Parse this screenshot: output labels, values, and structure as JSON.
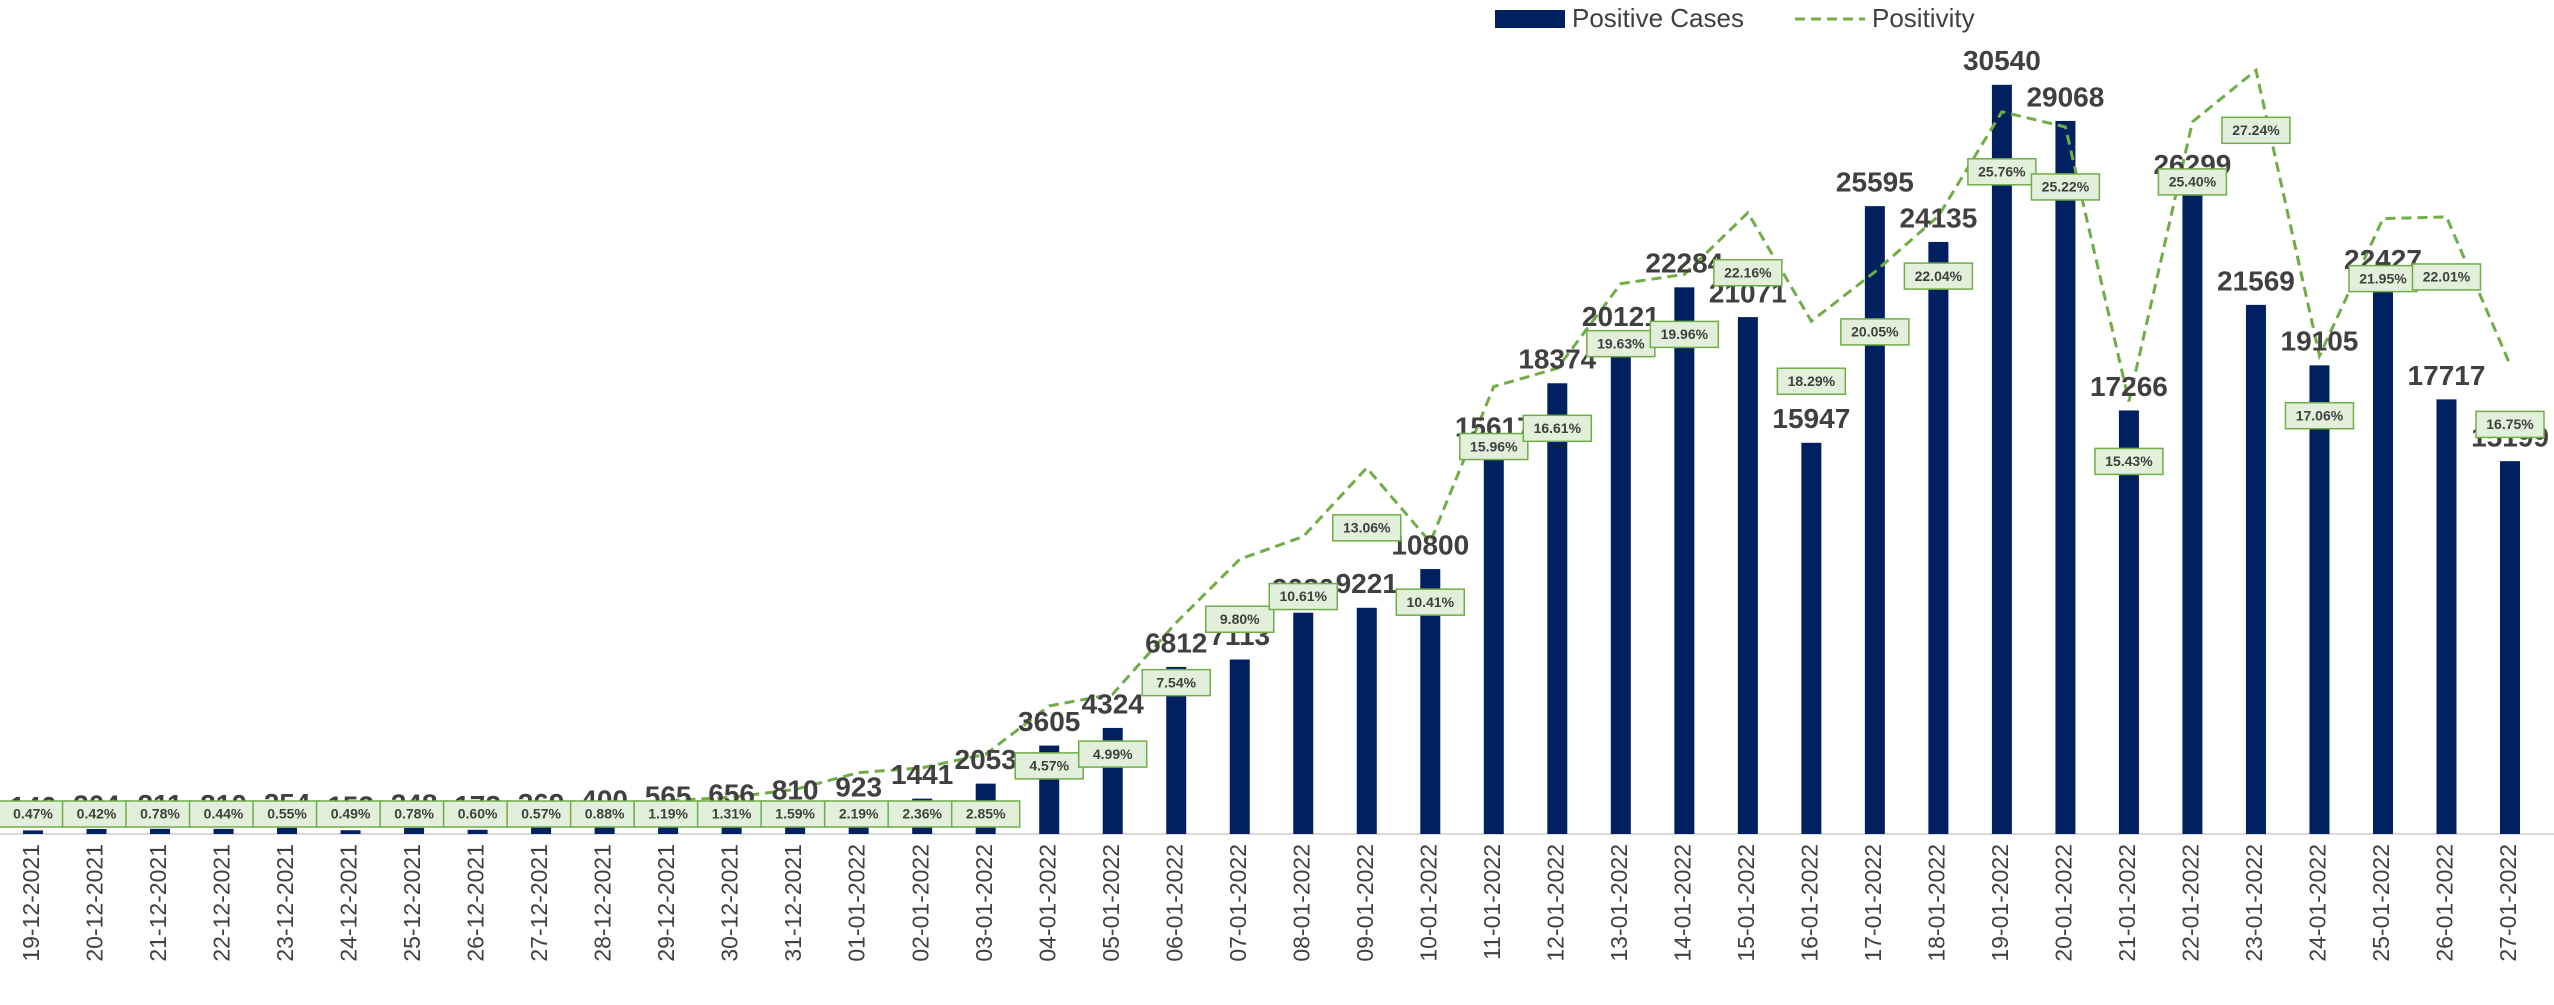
{
  "chart_data": {
    "type": "bar+line",
    "categories": [
      "19-12-2021",
      "20-12-2021",
      "21-12-2021",
      "22-12-2021",
      "23-12-2021",
      "24-12-2021",
      "25-12-2021",
      "26-12-2021",
      "27-12-2021",
      "28-12-2021",
      "29-12-2021",
      "30-12-2021",
      "31-12-2021",
      "01-01-2022",
      "02-01-2022",
      "03-01-2022",
      "04-01-2022",
      "05-01-2022",
      "06-01-2022",
      "07-01-2022",
      "08-01-2022",
      "09-01-2022",
      "10-01-2022",
      "11-01-2022",
      "12-01-2022",
      "13-01-2022",
      "14-01-2022",
      "15-01-2022",
      "16-01-2022",
      "17-01-2022",
      "18-01-2022",
      "19-01-2022",
      "20-01-2022",
      "21-01-2022",
      "22-01-2022",
      "23-01-2022",
      "24-01-2022",
      "25-01-2022",
      "26-01-2022",
      "27-01-2022"
    ],
    "series": [
      {
        "name": "Positive Cases",
        "type": "bar",
        "color": "#002060",
        "values": [
          146,
          204,
          211,
          210,
          254,
          152,
          248,
          172,
          269,
          400,
          565,
          656,
          810,
          923,
          1441,
          2053,
          3605,
          4324,
          6812,
          7113,
          9020,
          9221,
          10800,
          15617,
          18374,
          20121,
          22284,
          21071,
          15947,
          25595,
          24135,
          30540,
          29068,
          17266,
          26299,
          21569,
          19105,
          22427,
          17717,
          15199
        ]
      },
      {
        "name": "Positivity",
        "type": "line",
        "axis": "y2",
        "color": "#70ad47",
        "dashed": true,
        "values": [
          0.47,
          0.42,
          0.78,
          0.44,
          0.55,
          0.49,
          0.78,
          0.6,
          0.57,
          0.88,
          1.19,
          1.31,
          1.59,
          2.19,
          2.36,
          2.85,
          4.57,
          4.99,
          7.54,
          9.8,
          10.61,
          13.06,
          10.41,
          15.96,
          16.61,
          19.63,
          19.96,
          22.16,
          18.29,
          20.05,
          22.04,
          25.76,
          25.22,
          15.43,
          25.4,
          27.24,
          17.06,
          21.95,
          22.01,
          16.75
        ],
        "value_labels": [
          "0.47%",
          "0.42%",
          "0.78%",
          "0.44%",
          "0.55%",
          "0.49%",
          "0.78%",
          "0.60%",
          "0.57%",
          "0.88%",
          "1.19%",
          "1.31%",
          "1.59%",
          "2.19%",
          "2.36%",
          "2.85%",
          "4.57%",
          "4.99%",
          "7.54%",
          "9.80%",
          "10.61%",
          "13.06%",
          "10.41%",
          "15.96%",
          "16.61%",
          "19.63%",
          "19.96%",
          "22.16%",
          "18.29%",
          "20.05%",
          "22.04%",
          "25.76%",
          "25.22%",
          "15.43%",
          "25.40%",
          "27.24%",
          "17.06%",
          "21.95%",
          "22.01%",
          "16.75%"
        ]
      }
    ],
    "ylim": [
      0,
      32000
    ],
    "y2lim": [
      0,
      28
    ],
    "legend": "top"
  }
}
